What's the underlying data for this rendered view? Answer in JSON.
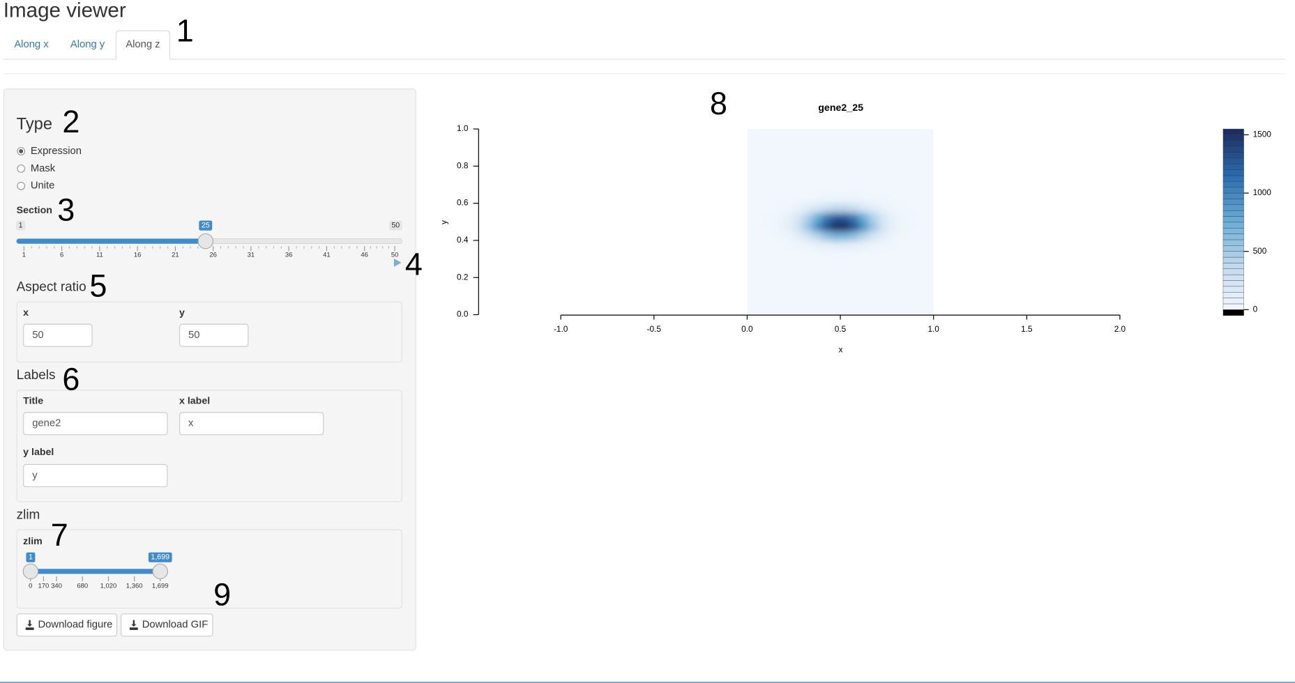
{
  "header": {
    "title": "Image viewer"
  },
  "tabs": [
    "Along x",
    "Along y",
    "Along z"
  ],
  "active_tab": 2,
  "annotations": [
    "1",
    "2",
    "3",
    "4",
    "5",
    "6",
    "7",
    "8",
    "9"
  ],
  "sidebar": {
    "type": {
      "heading": "Type",
      "options": [
        "Expression",
        "Mask",
        "Unite"
      ],
      "selected": 0
    },
    "section": {
      "label": "Section",
      "min": 1,
      "max": 50,
      "value": 25,
      "ticks": [
        1,
        6,
        11,
        16,
        21,
        26,
        31,
        36,
        41,
        46,
        50
      ]
    },
    "aspect": {
      "heading": "Aspect ratio",
      "fields": [
        {
          "label": "x",
          "value": "50"
        },
        {
          "label": "y",
          "value": "50"
        }
      ]
    },
    "labels": {
      "heading": "Labels",
      "fields": [
        {
          "label": "Title",
          "value": "gene2"
        },
        {
          "label": "x label",
          "value": "x"
        },
        {
          "label": "y label",
          "value": "y"
        }
      ]
    },
    "zlim": {
      "heading": "zlim",
      "label": "zlim",
      "range": [
        0,
        1699
      ],
      "from": 1,
      "to": {
        "value": 1699,
        "label": "1,699"
      },
      "ticks": [
        0,
        170,
        340,
        680,
        {
          "value": 1020,
          "label": "1,020"
        },
        {
          "value": 1360,
          "label": "1,360"
        },
        {
          "value": 1699,
          "label": "1,699"
        }
      ]
    },
    "buttons": [
      "Download figure",
      "Download GIF"
    ]
  },
  "chart_data": {
    "type": "heatmap",
    "title": "gene2_25",
    "xlabel": "x",
    "ylabel": "y",
    "xlim": [
      -1,
      2
    ],
    "xticks": [
      {
        "value": -1,
        "label": "-1.0"
      },
      -0.5,
      {
        "value": 0,
        "label": "0.0"
      },
      0.5,
      {
        "value": 1,
        "label": "1.0"
      },
      1.5,
      {
        "value": 2,
        "label": "2.0"
      }
    ],
    "ylim": [
      0,
      1
    ],
    "yticks": [
      {
        "value": 0,
        "label": "0.0"
      },
      0.2,
      0.4,
      0.6,
      0.8,
      {
        "value": 1,
        "label": "1.0"
      }
    ],
    "colorbar_lim": [
      -50,
      1550
    ],
    "colorbar_ticks": [
      0,
      500,
      1000,
      1500
    ],
    "palette": [
      "#f7fbff",
      "#c6dbef",
      "#6baed6",
      "#2b6cb0",
      "#1b2a5c"
    ],
    "x": [
      0.025,
      0.075,
      0.125,
      0.175,
      0.225,
      0.275,
      0.325,
      0.375,
      0.425,
      0.475,
      0.525,
      0.575,
      0.625,
      0.675,
      0.725,
      0.775,
      0.825,
      0.875,
      0.925,
      0.975
    ],
    "y": [
      0.025,
      0.075,
      0.125,
      0.175,
      0.225,
      0.275,
      0.325,
      0.375,
      0.425,
      0.475,
      0.525,
      0.575,
      0.625,
      0.675,
      0.725,
      0.775,
      0.825,
      0.875,
      0.925,
      0.975
    ],
    "z": [
      [
        0,
        0,
        0,
        0,
        0,
        0,
        0,
        0,
        0,
        0,
        0,
        0,
        0,
        0,
        0,
        0,
        0,
        0,
        0,
        0
      ],
      [
        0,
        0,
        0,
        0,
        0,
        0,
        0,
        0,
        0,
        0,
        0,
        0,
        0,
        0,
        0,
        0,
        0,
        0,
        0,
        0
      ],
      [
        0,
        0,
        0,
        0,
        0,
        0,
        0,
        0,
        0,
        0,
        0,
        0,
        0,
        0,
        0,
        0,
        0,
        0,
        0,
        0
      ],
      [
        0,
        0,
        0,
        0,
        0,
        0,
        0,
        0,
        0,
        0,
        0,
        0,
        0,
        0,
        0,
        0,
        0,
        0,
        0,
        0
      ],
      [
        0,
        0,
        0,
        0,
        0,
        0,
        0,
        0,
        0,
        0,
        0,
        0,
        0,
        0,
        0,
        0,
        0,
        0,
        0,
        0
      ],
      [
        0,
        0,
        0,
        0,
        0,
        0,
        0,
        0,
        0,
        0,
        0,
        0,
        0,
        0,
        0,
        0,
        0,
        0,
        0,
        0
      ],
      [
        0,
        0,
        0,
        0,
        1,
        1,
        3,
        4,
        6,
        7,
        7,
        6,
        4,
        3,
        1,
        1,
        0,
        0,
        0,
        0
      ],
      [
        0,
        0,
        1,
        3,
        8,
        20,
        41,
        68,
        96,
        115,
        115,
        96,
        68,
        41,
        20,
        8,
        3,
        1,
        0,
        0
      ],
      [
        0,
        1,
        5,
        18,
        51,
        122,
        246,
        412,
        584,
        694,
        694,
        584,
        412,
        246,
        122,
        51,
        18,
        5,
        1,
        0
      ],
      [
        1,
        3,
        12,
        40,
        114,
        271,
        546,
        917,
        1298,
        1544,
        1544,
        1298,
        917,
        546,
        271,
        114,
        40,
        12,
        3,
        1
      ],
      [
        1,
        2,
        10,
        33,
        93,
        222,
        445,
        748,
        1059,
        1260,
        1260,
        1059,
        748,
        445,
        222,
        93,
        33,
        10,
        2,
        1
      ],
      [
        0,
        1,
        3,
        10,
        28,
        67,
        135,
        226,
        320,
        381,
        381,
        320,
        226,
        135,
        67,
        28,
        10,
        3,
        1,
        0
      ],
      [
        0,
        0,
        0,
        1,
        3,
        7,
        15,
        25,
        35,
        42,
        42,
        35,
        25,
        15,
        7,
        3,
        1,
        0,
        0,
        0
      ],
      [
        0,
        0,
        0,
        0,
        0,
        0,
        0,
        0,
        0,
        0,
        0,
        0,
        0,
        0,
        0,
        0,
        0,
        0,
        0,
        0
      ],
      [
        0,
        0,
        0,
        0,
        0,
        0,
        0,
        0,
        0,
        0,
        0,
        0,
        0,
        0,
        0,
        0,
        0,
        0,
        0,
        0
      ],
      [
        0,
        0,
        0,
        0,
        0,
        0,
        0,
        0,
        0,
        0,
        0,
        0,
        0,
        0,
        0,
        0,
        0,
        0,
        0,
        0
      ],
      [
        0,
        0,
        0,
        0,
        0,
        0,
        0,
        0,
        0,
        0,
        0,
        0,
        0,
        0,
        0,
        0,
        0,
        0,
        0,
        0
      ],
      [
        0,
        0,
        0,
        0,
        0,
        0,
        0,
        0,
        0,
        0,
        0,
        0,
        0,
        0,
        0,
        0,
        0,
        0,
        0,
        0
      ],
      [
        0,
        0,
        0,
        0,
        0,
        0,
        0,
        0,
        0,
        0,
        0,
        0,
        0,
        0,
        0,
        0,
        0,
        0,
        0,
        0
      ],
      [
        0,
        0,
        0,
        0,
        0,
        0,
        0,
        0,
        0,
        0,
        0,
        0,
        0,
        0,
        0,
        0,
        0,
        0,
        0,
        0
      ]
    ]
  }
}
